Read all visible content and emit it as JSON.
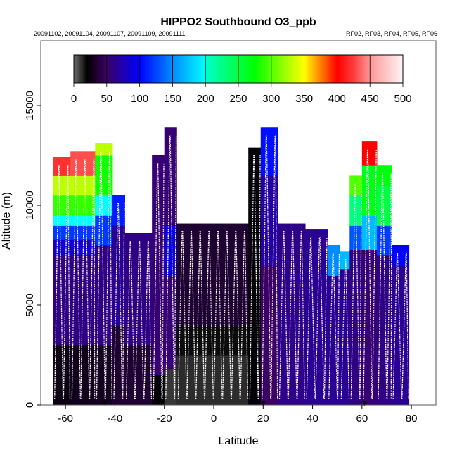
{
  "chart_data": {
    "type": "heatmap",
    "title": "HIPPO2 Southbound O3_ppb",
    "subtitle_left": "20091102, 20091104, 20091107, 20091109, 20091111",
    "subtitle_right": "RF02, RF03, RF04, RF05, RF06",
    "xlabel": "Latitude",
    "ylabel": "Altitude (m)",
    "xlim": [
      -70,
      90
    ],
    "ylim": [
      0,
      18200
    ],
    "xticks": [
      -60,
      -40,
      -20,
      0,
      20,
      40,
      60,
      80
    ],
    "yticks": [
      0,
      5000,
      10000,
      15000
    ],
    "colorbar": {
      "min": 0,
      "max": 500,
      "ticks": [
        0,
        50,
        100,
        150,
        200,
        250,
        300,
        350,
        400,
        450,
        500
      ]
    },
    "columns": [
      {
        "lat": [
          -65,
          -58
        ],
        "top": 12400,
        "bands": [
          [
            0,
            3000,
            25
          ],
          [
            3000,
            7500,
            60
          ],
          [
            7500,
            8300,
            85
          ],
          [
            8300,
            9000,
            120
          ],
          [
            9000,
            9500,
            200
          ],
          [
            9500,
            10500,
            290
          ],
          [
            10500,
            11500,
            330
          ],
          [
            11500,
            12400,
            420
          ]
        ]
      },
      {
        "lat": [
          -58,
          -48
        ],
        "top": 12700,
        "bands": [
          [
            0,
            3000,
            28
          ],
          [
            3000,
            7500,
            60
          ],
          [
            7500,
            8300,
            85
          ],
          [
            8300,
            9000,
            120
          ],
          [
            9000,
            9500,
            200
          ],
          [
            9500,
            10500,
            290
          ],
          [
            10500,
            11500,
            330
          ],
          [
            11500,
            12700,
            430
          ]
        ]
      },
      {
        "lat": [
          -48,
          -41
        ],
        "top": 13100,
        "bands": [
          [
            0,
            3000,
            30
          ],
          [
            3000,
            8000,
            60
          ],
          [
            8000,
            9500,
            120
          ],
          [
            9500,
            10500,
            200
          ],
          [
            10500,
            12500,
            280
          ],
          [
            12500,
            13100,
            330
          ]
        ]
      },
      {
        "lat": [
          -41,
          -36
        ],
        "top": 10500,
        "bands": [
          [
            0,
            4000,
            35
          ],
          [
            4000,
            9000,
            65
          ],
          [
            9000,
            10500,
            110
          ]
        ]
      },
      {
        "lat": [
          -36,
          -25
        ],
        "top": 8600,
        "bands": [
          [
            0,
            3000,
            35
          ],
          [
            3000,
            8600,
            60
          ]
        ]
      },
      {
        "lat": [
          -25,
          -20
        ],
        "top": 12500,
        "bands": [
          [
            0,
            1500,
            22
          ],
          [
            1500,
            12500,
            55
          ]
        ]
      },
      {
        "lat": [
          -20,
          -15
        ],
        "top": 13900,
        "bands": [
          [
            0,
            1800,
            10
          ],
          [
            1800,
            6500,
            55
          ],
          [
            6500,
            9000,
            90
          ],
          [
            9000,
            13900,
            55
          ]
        ]
      },
      {
        "lat": [
          -15,
          14
        ],
        "top": 9100,
        "bands": [
          [
            0,
            2500,
            12
          ],
          [
            2500,
            4000,
            18
          ],
          [
            4000,
            9100,
            35
          ]
        ]
      },
      {
        "lat": [
          14,
          19
        ],
        "top": 12900,
        "bands": [
          [
            0,
            12900,
            22
          ]
        ]
      },
      {
        "lat": [
          19,
          26
        ],
        "top": 13900,
        "bands": [
          [
            0,
            7000,
            50
          ],
          [
            7000,
            11500,
            70
          ],
          [
            11500,
            13900,
            105
          ]
        ]
      },
      {
        "lat": [
          26,
          37
        ],
        "top": 9100,
        "bands": [
          [
            0,
            9100,
            62
          ]
        ]
      },
      {
        "lat": [
          37,
          46
        ],
        "top": 8800,
        "bands": [
          [
            0,
            8800,
            65
          ]
        ]
      },
      {
        "lat": [
          46,
          51
        ],
        "top": 8000,
        "bands": [
          [
            0,
            6500,
            65
          ],
          [
            6500,
            8000,
            150
          ]
        ]
      },
      {
        "lat": [
          51,
          55
        ],
        "top": 7700,
        "bands": [
          [
            0,
            6800,
            65
          ],
          [
            6800,
            7700,
            170
          ]
        ]
      },
      {
        "lat": [
          55,
          60
        ],
        "top": 11500,
        "bands": [
          [
            0,
            7800,
            60
          ],
          [
            7800,
            9000,
            130
          ],
          [
            9000,
            10500,
            230
          ],
          [
            10500,
            11500,
            300
          ]
        ]
      },
      {
        "lat": [
          60,
          66
        ],
        "top": 13200,
        "bands": [
          [
            0,
            7800,
            55
          ],
          [
            7800,
            9500,
            170
          ],
          [
            9500,
            12000,
            265
          ],
          [
            12000,
            13200,
            400
          ]
        ]
      },
      {
        "lat": [
          66,
          72
        ],
        "top": 12000,
        "bands": [
          [
            0,
            7500,
            60
          ],
          [
            7500,
            9000,
            120
          ],
          [
            9000,
            11000,
            250
          ],
          [
            11000,
            12000,
            270
          ]
        ]
      },
      {
        "lat": [
          72,
          79
        ],
        "top": 8000,
        "bands": [
          [
            0,
            7000,
            65
          ],
          [
            7000,
            8000,
            100
          ]
        ]
      }
    ],
    "markers_lat": [
      -44,
      -21,
      20,
      61
    ]
  }
}
